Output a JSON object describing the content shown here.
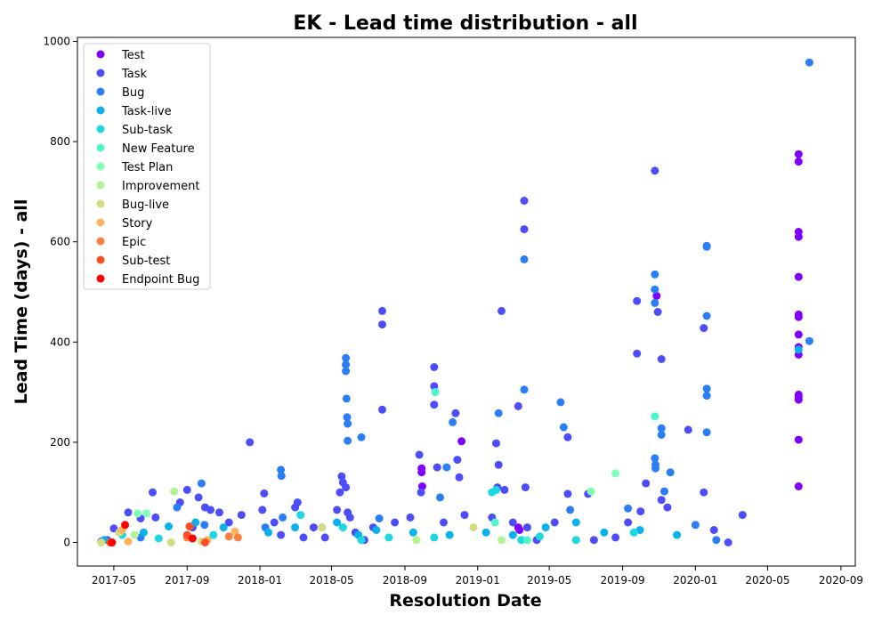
{
  "chart_data": {
    "type": "scatter",
    "title": "EK - Lead time distribution - all",
    "xlabel": "Resolution Date",
    "ylabel": "Lead Time (days) - all",
    "x_range": [
      "2017-03-01",
      "2020-09-25"
    ],
    "ylim": [
      -47,
      1008
    ],
    "x_ticks": [
      "2017-05-01",
      "2017-09-01",
      "2018-01-01",
      "2018-05-01",
      "2018-09-01",
      "2019-01-01",
      "2019-05-01",
      "2019-09-01",
      "2020-01-01",
      "2020-05-01",
      "2020-09-01"
    ],
    "x_tick_labels": [
      "2017-05",
      "2017-09",
      "2018-01",
      "2018-05",
      "2018-09",
      "2019-01",
      "2019-05",
      "2019-09",
      "2020-01",
      "2020-05",
      "2020-09"
    ],
    "y_ticks": [
      0,
      200,
      400,
      600,
      800,
      1000
    ],
    "grid": false,
    "legend_position": "top-left",
    "series": [
      {
        "name": "Test",
        "color": "#8000ff",
        "points": [
          [
            "2018-09-29",
            148
          ],
          [
            "2018-09-29",
            140
          ],
          [
            "2018-09-30",
            112
          ],
          [
            "2018-12-05",
            202
          ],
          [
            "2019-03-10",
            30
          ],
          [
            "2019-03-12",
            25
          ],
          [
            "2019-10-28",
            492
          ],
          [
            "2020-06-22",
            775
          ],
          [
            "2020-06-22",
            760
          ],
          [
            "2020-06-22",
            620
          ],
          [
            "2020-06-22",
            610
          ],
          [
            "2020-06-22",
            530
          ],
          [
            "2020-06-22",
            455
          ],
          [
            "2020-06-22",
            450
          ],
          [
            "2020-06-22",
            415
          ],
          [
            "2020-06-22",
            390
          ],
          [
            "2020-06-22",
            375
          ],
          [
            "2020-06-22",
            295
          ],
          [
            "2020-06-22",
            290
          ],
          [
            "2020-06-22",
            285
          ],
          [
            "2020-06-22",
            205
          ],
          [
            "2020-06-22",
            112
          ]
        ]
      },
      {
        "name": "Task",
        "color": "#4e4dfc",
        "points": [
          [
            "2017-04-10",
            2
          ],
          [
            "2017-04-20",
            5
          ],
          [
            "2017-05-01",
            28
          ],
          [
            "2017-05-25",
            60
          ],
          [
            "2017-06-15",
            48
          ],
          [
            "2017-07-05",
            100
          ],
          [
            "2017-07-10",
            50
          ],
          [
            "2017-08-20",
            80
          ],
          [
            "2017-09-01",
            105
          ],
          [
            "2017-09-10",
            30
          ],
          [
            "2017-09-20",
            90
          ],
          [
            "2017-10-01",
            70
          ],
          [
            "2017-10-10",
            65
          ],
          [
            "2017-10-25",
            60
          ],
          [
            "2017-11-10",
            40
          ],
          [
            "2017-12-01",
            55
          ],
          [
            "2017-12-15",
            200
          ],
          [
            "2018-01-05",
            65
          ],
          [
            "2018-01-08",
            98
          ],
          [
            "2018-01-25",
            40
          ],
          [
            "2018-02-05",
            15
          ],
          [
            "2018-03-01",
            70
          ],
          [
            "2018-03-05",
            80
          ],
          [
            "2018-03-15",
            10
          ],
          [
            "2018-04-01",
            30
          ],
          [
            "2018-04-20",
            10
          ],
          [
            "2018-05-10",
            65
          ],
          [
            "2018-05-15",
            100
          ],
          [
            "2018-05-18",
            132
          ],
          [
            "2018-05-20",
            120
          ],
          [
            "2018-05-25",
            110
          ],
          [
            "2018-05-28",
            60
          ],
          [
            "2018-06-01",
            50
          ],
          [
            "2018-06-10",
            20
          ],
          [
            "2018-06-25",
            5
          ],
          [
            "2018-07-10",
            30
          ],
          [
            "2018-07-25",
            462
          ],
          [
            "2018-07-25",
            435
          ],
          [
            "2018-07-25",
            265
          ],
          [
            "2018-08-15",
            40
          ],
          [
            "2018-09-10",
            50
          ],
          [
            "2018-09-25",
            175
          ],
          [
            "2018-09-28",
            100
          ],
          [
            "2018-10-20",
            350
          ],
          [
            "2018-10-20",
            312
          ],
          [
            "2018-10-20",
            275
          ],
          [
            "2018-10-25",
            150
          ],
          [
            "2018-11-05",
            40
          ],
          [
            "2018-11-25",
            258
          ],
          [
            "2018-11-28",
            165
          ],
          [
            "2018-12-01",
            130
          ],
          [
            "2018-12-10",
            55
          ],
          [
            "2019-01-25",
            50
          ],
          [
            "2019-02-01",
            198
          ],
          [
            "2019-02-03",
            110
          ],
          [
            "2019-02-05",
            155
          ],
          [
            "2019-02-10",
            462
          ],
          [
            "2019-02-15",
            105
          ],
          [
            "2019-03-01",
            40
          ],
          [
            "2019-03-10",
            272
          ],
          [
            "2019-03-20",
            682
          ],
          [
            "2019-03-20",
            625
          ],
          [
            "2019-03-22",
            110
          ],
          [
            "2019-03-25",
            30
          ],
          [
            "2019-04-10",
            5
          ],
          [
            "2019-05-10",
            40
          ],
          [
            "2019-06-01",
            210
          ],
          [
            "2019-06-01",
            97
          ],
          [
            "2019-07-05",
            97
          ],
          [
            "2019-07-15",
            5
          ],
          [
            "2019-08-20",
            10
          ],
          [
            "2019-09-10",
            40
          ],
          [
            "2019-09-25",
            482
          ],
          [
            "2019-09-25",
            377
          ],
          [
            "2019-10-01",
            62
          ],
          [
            "2019-10-10",
            118
          ],
          [
            "2019-10-25",
            742
          ],
          [
            "2019-10-30",
            460
          ],
          [
            "2019-11-05",
            366
          ],
          [
            "2019-11-05",
            85
          ],
          [
            "2019-11-15",
            70
          ],
          [
            "2019-12-20",
            225
          ],
          [
            "2020-01-15",
            100
          ],
          [
            "2020-01-15",
            428
          ],
          [
            "2020-02-01",
            25
          ],
          [
            "2020-02-25",
            0
          ],
          [
            "2020-03-20",
            55
          ]
        ]
      },
      {
        "name": "Bug",
        "color": "#2c7ef7",
        "points": [
          [
            "2017-06-15",
            10
          ],
          [
            "2017-08-15",
            70
          ],
          [
            "2017-09-25",
            118
          ],
          [
            "2017-09-30",
            35
          ],
          [
            "2018-01-10",
            30
          ],
          [
            "2018-02-05",
            145
          ],
          [
            "2018-02-06",
            133
          ],
          [
            "2018-02-08",
            50
          ],
          [
            "2018-05-25",
            368
          ],
          [
            "2018-05-25",
            355
          ],
          [
            "2018-05-25",
            342
          ],
          [
            "2018-05-26",
            287
          ],
          [
            "2018-05-27",
            250
          ],
          [
            "2018-05-28",
            237
          ],
          [
            "2018-05-28",
            203
          ],
          [
            "2018-06-20",
            210
          ],
          [
            "2018-07-20",
            48
          ],
          [
            "2018-10-30",
            90
          ],
          [
            "2018-11-10",
            150
          ],
          [
            "2018-11-20",
            240
          ],
          [
            "2019-02-05",
            258
          ],
          [
            "2019-03-20",
            565
          ],
          [
            "2019-03-20",
            305
          ],
          [
            "2019-05-20",
            280
          ],
          [
            "2019-05-25",
            230
          ],
          [
            "2019-06-05",
            65
          ],
          [
            "2019-09-10",
            68
          ],
          [
            "2019-10-25",
            535
          ],
          [
            "2019-10-25",
            505
          ],
          [
            "2019-10-25",
            478
          ],
          [
            "2019-10-25",
            168
          ],
          [
            "2019-10-26",
            155
          ],
          [
            "2019-10-26",
            148
          ],
          [
            "2019-11-05",
            228
          ],
          [
            "2019-11-05",
            215
          ],
          [
            "2019-11-10",
            102
          ],
          [
            "2019-11-20",
            140
          ],
          [
            "2020-01-01",
            35
          ],
          [
            "2020-01-20",
            592
          ],
          [
            "2020-01-20",
            590
          ],
          [
            "2020-01-20",
            452
          ],
          [
            "2020-01-20",
            307
          ],
          [
            "2020-01-20",
            293
          ],
          [
            "2020-01-20",
            220
          ],
          [
            "2020-02-05",
            5
          ],
          [
            "2020-07-10",
            958
          ],
          [
            "2020-07-10",
            402
          ]
        ]
      },
      {
        "name": "Task-live",
        "color": "#0ab1ec",
        "points": [
          [
            "2017-04-15",
            5
          ],
          [
            "2017-06-20",
            20
          ],
          [
            "2017-08-01",
            32
          ],
          [
            "2017-09-15",
            40
          ],
          [
            "2017-11-01",
            30
          ],
          [
            "2018-01-15",
            20
          ],
          [
            "2018-03-01",
            30
          ],
          [
            "2018-04-15",
            30
          ],
          [
            "2018-05-10",
            40
          ],
          [
            "2018-06-15",
            15
          ],
          [
            "2018-07-15",
            25
          ],
          [
            "2018-09-15",
            20
          ],
          [
            "2018-11-15",
            15
          ],
          [
            "2019-01-15",
            20
          ],
          [
            "2019-03-01",
            15
          ],
          [
            "2019-04-25",
            30
          ],
          [
            "2019-06-15",
            40
          ],
          [
            "2019-08-01",
            20
          ],
          [
            "2019-09-30",
            25
          ],
          [
            "2019-12-01",
            15
          ],
          [
            "2020-06-22",
            385
          ]
        ]
      },
      {
        "name": "Sub-task",
        "color": "#1dd8e0",
        "points": [
          [
            "2017-05-15",
            15
          ],
          [
            "2017-07-15",
            8
          ],
          [
            "2017-10-15",
            15
          ],
          [
            "2018-03-10",
            55
          ],
          [
            "2018-05-20",
            30
          ],
          [
            "2018-06-20",
            5
          ],
          [
            "2018-08-05",
            10
          ],
          [
            "2018-10-20",
            10
          ],
          [
            "2019-01-25",
            100
          ],
          [
            "2019-02-01",
            105
          ],
          [
            "2019-03-15",
            5
          ],
          [
            "2019-04-15",
            12
          ],
          [
            "2019-06-15",
            5
          ],
          [
            "2019-09-20",
            20
          ]
        ]
      },
      {
        "name": "New Feature",
        "color": "#4df6c8",
        "points": [
          [
            "2018-10-22",
            300
          ],
          [
            "2019-10-25",
            252
          ],
          [
            "2019-01-30",
            40
          ],
          [
            "2019-03-25",
            5
          ]
        ]
      },
      {
        "name": "Test Plan",
        "color": "#80ffb4",
        "points": [
          [
            "2017-06-10",
            58
          ],
          [
            "2017-06-25",
            58
          ],
          [
            "2019-07-10",
            102
          ],
          [
            "2019-08-20",
            138
          ]
        ]
      },
      {
        "name": "Improvement",
        "color": "#b2f396",
        "points": [
          [
            "2017-08-10",
            102
          ],
          [
            "2017-06-05",
            15
          ],
          [
            "2018-09-20",
            5
          ],
          [
            "2019-02-10",
            5
          ]
        ]
      },
      {
        "name": "Bug-live",
        "color": "#d4dc7f",
        "points": [
          [
            "2017-04-10",
            0
          ],
          [
            "2017-05-10",
            20
          ],
          [
            "2017-08-05",
            0
          ],
          [
            "2017-09-25",
            2
          ],
          [
            "2018-04-15",
            30
          ],
          [
            "2018-12-25",
            30
          ]
        ]
      },
      {
        "name": "Story",
        "color": "#ffb260",
        "points": [
          [
            "2017-05-15",
            25
          ],
          [
            "2017-11-20",
            22
          ],
          [
            "2017-05-25",
            2
          ],
          [
            "2017-10-05",
            5
          ]
        ]
      },
      {
        "name": "Epic",
        "color": "#ff7e41",
        "points": [
          [
            "2017-11-10",
            12
          ],
          [
            "2017-11-25",
            10
          ],
          [
            "2017-09-01",
            10
          ]
        ]
      },
      {
        "name": "Sub-test",
        "color": "#ff4d27",
        "points": [
          [
            "2017-09-05",
            32
          ],
          [
            "2017-09-01",
            15
          ],
          [
            "2017-10-01",
            0
          ],
          [
            "2017-04-25",
            0
          ]
        ]
      },
      {
        "name": "Endpoint Bug",
        "color": "#ff0000",
        "points": [
          [
            "2017-05-20",
            35
          ],
          [
            "2017-04-28",
            0
          ],
          [
            "2017-09-10",
            8
          ]
        ]
      }
    ]
  }
}
